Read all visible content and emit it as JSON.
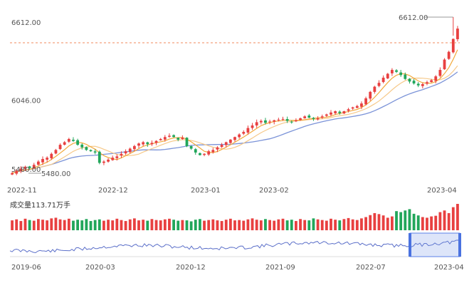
{
  "chart_data": {
    "type": "candlestick",
    "y_labels": [
      {
        "value": 6612.0,
        "label": "6612.00"
      },
      {
        "value": 6046.0,
        "label": "6046.00"
      },
      {
        "value": 5480.0,
        "label": "5480.00"
      }
    ],
    "ylim": [
      5430,
      6700
    ],
    "x_ticks": [
      "2022-11",
      "2022-12",
      "2023-01",
      "2023-02",
      "2023-04"
    ],
    "max_marker": {
      "value": 6612.0,
      "label": "6612.00"
    },
    "min_marker": {
      "value": 5480.0,
      "label": "5480.00"
    },
    "close": [
      5480,
      5500,
      5515,
      5530,
      5520,
      5545,
      5570,
      5590,
      5600,
      5630,
      5660,
      5700,
      5720,
      5745,
      5730,
      5700,
      5680,
      5660,
      5650,
      5640,
      5560,
      5570,
      5585,
      5600,
      5610,
      5630,
      5650,
      5670,
      5690,
      5710,
      5720,
      5705,
      5715,
      5730,
      5745,
      5760,
      5770,
      5760,
      5740,
      5755,
      5690,
      5670,
      5640,
      5620,
      5630,
      5650,
      5660,
      5680,
      5700,
      5720,
      5740,
      5760,
      5780,
      5800,
      5830,
      5850,
      5875,
      5885,
      5870,
      5880,
      5890,
      5895,
      5900,
      5885,
      5875,
      5890,
      5905,
      5920,
      5910,
      5900,
      5905,
      5920,
      5935,
      5950,
      5960,
      5945,
      5960,
      5975,
      5990,
      6000,
      6020,
      6060,
      6110,
      6150,
      6180,
      6220,
      6250,
      6280,
      6265,
      6240,
      6210,
      6190,
      6175,
      6160,
      6170,
      6185,
      6200,
      6230,
      6280,
      6360,
      6420,
      6520,
      6600
    ],
    "volume": [
      30,
      33,
      28,
      35,
      31,
      29,
      34,
      32,
      30,
      36,
      38,
      33,
      31,
      35,
      29,
      32,
      30,
      34,
      28,
      31,
      33,
      29,
      32,
      30,
      35,
      31,
      28,
      33,
      36,
      30,
      32,
      29,
      34,
      31,
      30,
      33,
      35,
      32,
      29,
      31,
      30,
      27,
      32,
      34,
      29,
      31,
      33,
      30,
      28,
      32,
      35,
      30,
      31,
      29,
      33,
      36,
      32,
      30,
      34,
      31,
      29,
      33,
      35,
      30,
      32,
      28,
      34,
      31,
      30,
      36,
      33,
      31,
      29,
      35,
      32,
      30,
      34,
      37,
      33,
      31,
      36,
      40,
      46,
      52,
      49,
      45,
      38,
      42,
      58,
      55,
      60,
      64,
      50,
      45,
      40,
      38,
      42,
      44,
      55,
      60,
      52,
      70,
      80
    ],
    "volume_label": "成交量113.71万手",
    "navigator_x_ticks": [
      "2019-06",
      "2020-03",
      "2020-12",
      "2021-09",
      "2022-07",
      "2023-04"
    ],
    "colors": {
      "up": "#e84040",
      "down": "#21a65a",
      "ma5": "#f2a93b",
      "ma10": "#f6c98a",
      "ma20": "#7b93d8"
    }
  }
}
